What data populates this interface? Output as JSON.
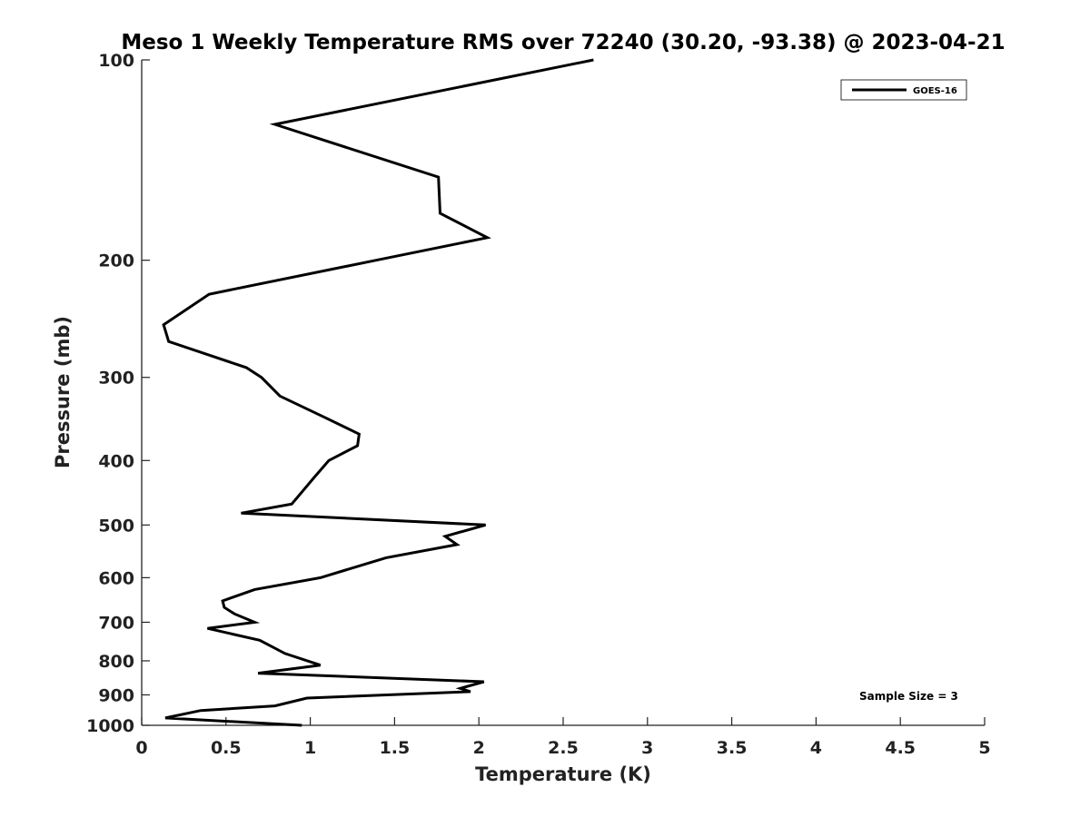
{
  "chart_data": {
    "type": "line",
    "title": "Meso 1 Weekly Temperature RMS over 72240 (30.20, -93.38) @ 2023-04-21",
    "xlabel": "Temperature (K)",
    "ylabel": "Pressure (mb)",
    "xlim": [
      0,
      5
    ],
    "ylim": [
      100,
      1000
    ],
    "y_scale": "log",
    "y_reversed": true,
    "xticks": [
      0,
      0.5,
      1,
      1.5,
      2,
      2.5,
      3,
      3.5,
      4,
      4.5,
      5
    ],
    "xtick_labels": [
      "0",
      "0.5",
      "1",
      "1.5",
      "2",
      "2.5",
      "3",
      "3.5",
      "4",
      "4.5",
      "5"
    ],
    "yticks": [
      100,
      200,
      300,
      400,
      500,
      600,
      700,
      800,
      900,
      1000
    ],
    "ytick_labels": [
      "100",
      "200",
      "300",
      "400",
      "500",
      "600",
      "700",
      "800",
      "900",
      "1000"
    ],
    "grid": false,
    "legend": {
      "position": "top-right",
      "entries": [
        "GOES-16"
      ]
    },
    "annotation": "Sample Size = 3",
    "series": [
      {
        "name": "GOES-16",
        "color": "#000000",
        "points": [
          [
            2.68,
            100
          ],
          [
            0.79,
            125
          ],
          [
            1.76,
            150
          ],
          [
            1.77,
            170
          ],
          [
            2.05,
            185
          ],
          [
            1.39,
            200
          ],
          [
            0.4,
            225
          ],
          [
            0.13,
            250
          ],
          [
            0.16,
            265
          ],
          [
            0.62,
            290
          ],
          [
            0.71,
            300
          ],
          [
            0.82,
            320
          ],
          [
            1.09,
            345
          ],
          [
            1.29,
            365
          ],
          [
            1.28,
            380
          ],
          [
            1.11,
            400
          ],
          [
            1.02,
            425
          ],
          [
            0.97,
            440
          ],
          [
            0.89,
            465
          ],
          [
            0.59,
            480
          ],
          [
            2.04,
            500
          ],
          [
            1.8,
            520
          ],
          [
            1.87,
            535
          ],
          [
            1.45,
            560
          ],
          [
            1.06,
            600
          ],
          [
            0.67,
            625
          ],
          [
            0.48,
            650
          ],
          [
            0.49,
            665
          ],
          [
            0.55,
            680
          ],
          [
            0.67,
            700
          ],
          [
            0.39,
            715
          ],
          [
            0.7,
            745
          ],
          [
            0.85,
            780
          ],
          [
            1.06,
            812
          ],
          [
            0.69,
            835
          ],
          [
            2.03,
            860
          ],
          [
            1.89,
            880
          ],
          [
            1.95,
            890
          ],
          [
            0.98,
            910
          ],
          [
            0.79,
            935
          ],
          [
            0.35,
            950
          ],
          [
            0.14,
            975
          ],
          [
            0.95,
            1000
          ]
        ]
      }
    ]
  }
}
